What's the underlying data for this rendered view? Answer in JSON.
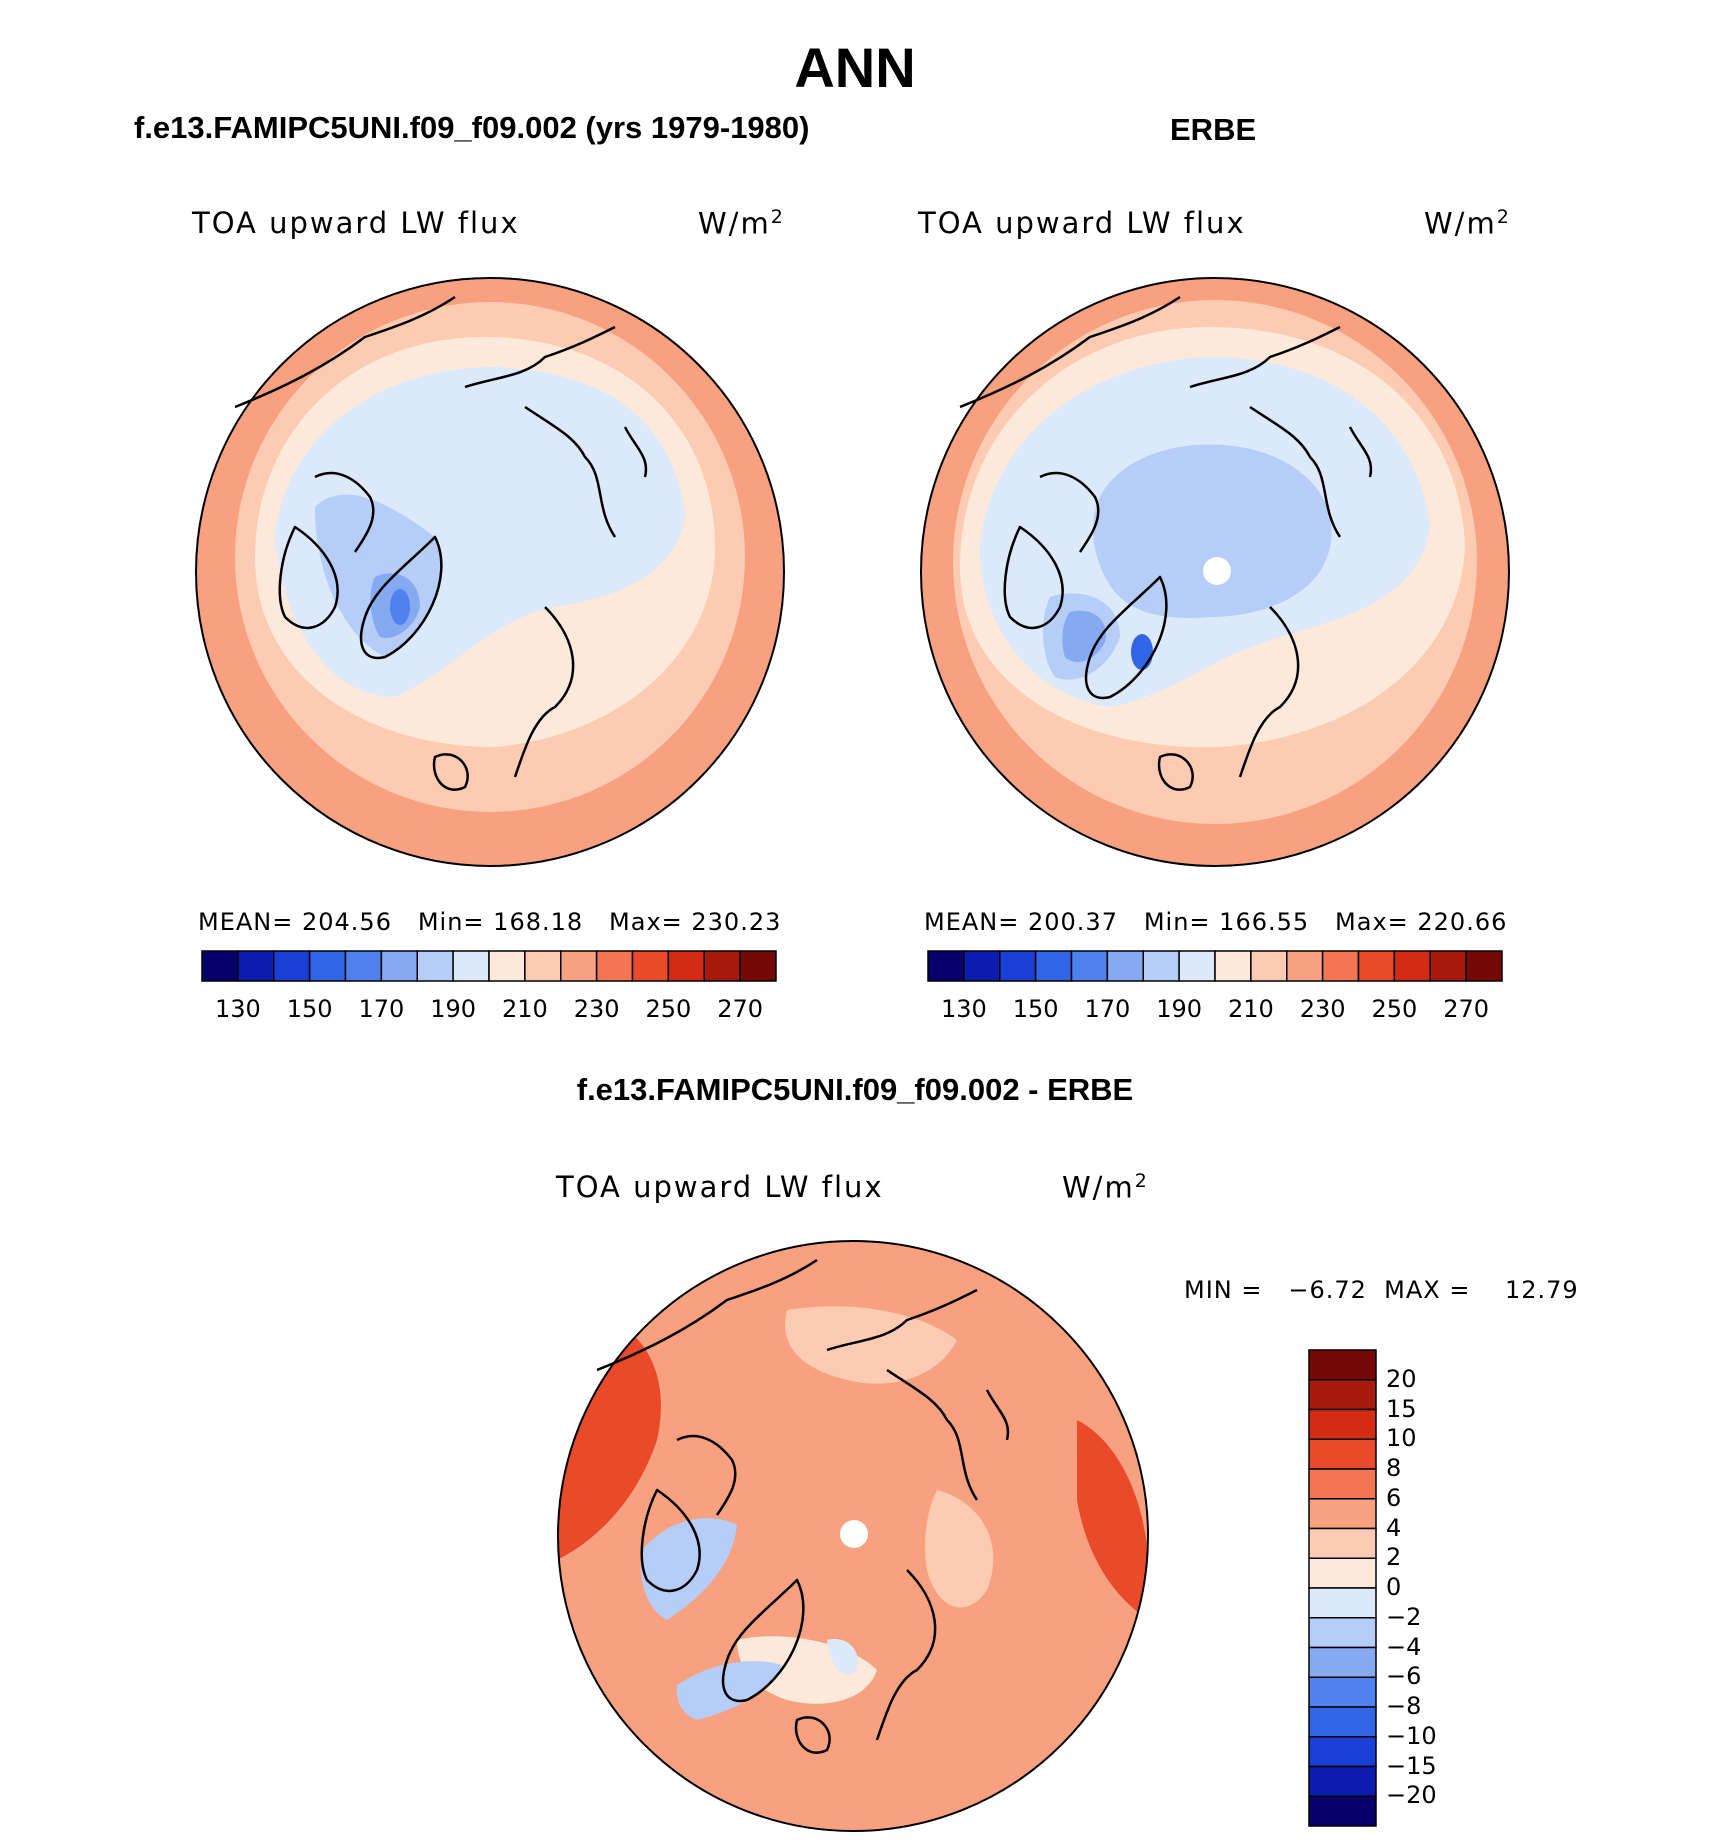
{
  "title": "ANN",
  "colors": {
    "abs_scale": [
      "#08006a",
      "#0d1cb0",
      "#1a3fd6",
      "#3264e6",
      "#4f82ee",
      "#86aaf2",
      "#b5cdf7",
      "#dbe9fb",
      "#fde9da",
      "#fccbb2",
      "#f8a180",
      "#f37552",
      "#ea4a2a",
      "#d42c14",
      "#a71a0c",
      "#760808"
    ],
    "diff_scale": [
      "#08006a",
      "#0d1cb0",
      "#1a3fd6",
      "#3264e6",
      "#4f82ee",
      "#86aaf2",
      "#b5cdf7",
      "#dbe9fb",
      "#fde9da",
      "#fccbb2",
      "#f8a180",
      "#f37552",
      "#ea4a2a",
      "#d42c14",
      "#a71a0c",
      "#760808"
    ]
  },
  "panels": {
    "model": {
      "title": "f.e13.FAMIPC5UNI.f09_f09.002 (yrs 1979-1980)",
      "variable": "TOA upward LW flux",
      "units": "W/m",
      "units_exp": "2",
      "stats": "MEAN= 204.56   Min= 168.18   Max= 230.23",
      "ticks": [
        "130",
        "150",
        "170",
        "190",
        "210",
        "230",
        "250",
        "270"
      ]
    },
    "obs": {
      "title": "ERBE",
      "variable": "TOA upward LW flux",
      "units": "W/m",
      "units_exp": "2",
      "stats": "MEAN= 200.37   Min= 166.55   Max= 220.66",
      "ticks": [
        "130",
        "150",
        "170",
        "190",
        "210",
        "230",
        "250",
        "270"
      ]
    },
    "diff": {
      "title": "f.e13.FAMIPC5UNI.f09_f09.002 - ERBE",
      "variable": "TOA upward LW flux",
      "units": "W/m",
      "units_exp": "2",
      "minmax": "MIN =   −6.72  MAX =    12.79",
      "ticks": [
        "20",
        "15",
        "10",
        "8",
        "6",
        "4",
        "2",
        "0",
        "−2",
        "−4",
        "−6",
        "−8",
        "−10",
        "−15",
        "−20"
      ]
    }
  }
}
